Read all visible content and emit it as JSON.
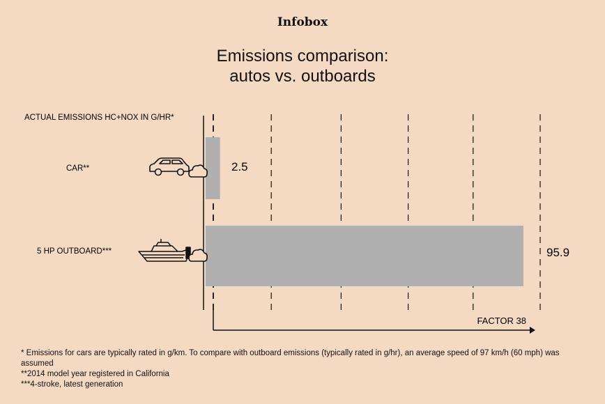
{
  "header": {
    "kicker": "Infobox",
    "title_line1": "Emissions comparison:",
    "title_line2": "autos vs. outboards"
  },
  "chart_data": {
    "type": "bar",
    "orientation": "horizontal",
    "ylabel": "ACTUAL EMISSIONS HC+NOX IN G/HR*",
    "categories": [
      "CAR**",
      "5 HP OUTBOARD***"
    ],
    "values": [
      2.5,
      95.9
    ],
    "value_labels": [
      "2.5",
      "95.9"
    ],
    "xlim": [
      0,
      100
    ],
    "xlabel": "FACTOR 38",
    "grid": true,
    "bar_color": "#b0b0b0",
    "icons": [
      "car-icon",
      "boat-icon",
      "exhaust-cloud-icon"
    ]
  },
  "footnotes": [
    "* Emissions for cars are typically rated in g/km. To compare with outboard emissions (typically rated in g/hr), an average speed of 97 km/h (60 mph) was assumed",
    "**2014 model year registered in California",
    "***4-stroke, latest generation"
  ],
  "colors": {
    "background": "#f4d9c3",
    "bar": "#b0b0b0",
    "ink": "#111111"
  }
}
